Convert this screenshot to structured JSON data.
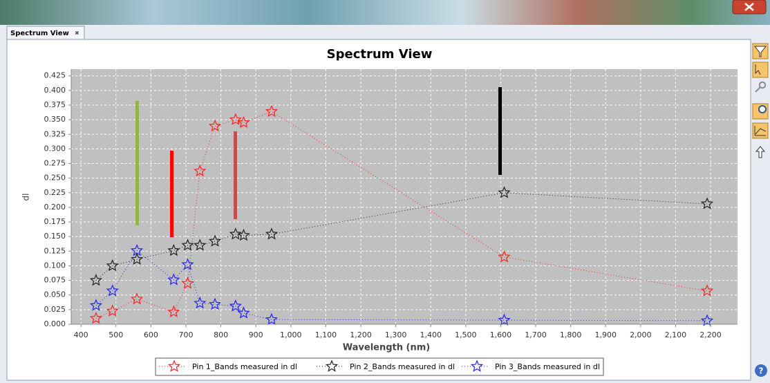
{
  "tab": {
    "title": "Spectrum View"
  },
  "chart_data": {
    "type": "line",
    "title": "Spectrum View",
    "x_label": "Wavelength (nm)",
    "y_label": "dl",
    "x": [
      443,
      490,
      560,
      665,
      705,
      740,
      783,
      842,
      865,
      945,
      1610,
      2190
    ],
    "series": [
      {
        "name": "Pin 1_Bands measured in dl",
        "color": "#ff2020",
        "values": [
          0.01,
          0.0225,
          0.043,
          0.021,
          0.07,
          0.262,
          0.339,
          0.35,
          0.345,
          0.364,
          0.115,
          0.057
        ]
      },
      {
        "name": "Pin 2_Bands measured in dl",
        "color": "#202020",
        "values": [
          0.075,
          0.1,
          0.111,
          0.126,
          0.135,
          0.135,
          0.142,
          0.154,
          0.152,
          0.154,
          0.225,
          0.206
        ]
      },
      {
        "name": "Pin 3_Bands measured in dl",
        "color": "#2020ff",
        "values": [
          0.032,
          0.057,
          0.126,
          0.076,
          0.102,
          0.036,
          0.034,
          0.031,
          0.019,
          0.008,
          0.007,
          0.006
        ]
      }
    ],
    "xlim": [
      372,
      2277
    ],
    "xticks": [
      400,
      500,
      600,
      700,
      800,
      900,
      {
        "value": 1000,
        "label": "1,000"
      },
      {
        "value": 1100,
        "label": "1,100"
      },
      {
        "value": 1200,
        "label": "1,200"
      },
      {
        "value": 1300,
        "label": "1,300"
      },
      {
        "value": 1400,
        "label": "1,400"
      },
      {
        "value": 1500,
        "label": "1,500"
      },
      {
        "value": 1600,
        "label": "1,600"
      },
      {
        "value": 1700,
        "label": "1,700"
      },
      {
        "value": 1800,
        "label": "1,800"
      },
      {
        "value": 1900,
        "label": "1,900"
      },
      {
        "value": 2000,
        "label": "2,000"
      },
      {
        "value": 2100,
        "label": "2,100"
      },
      {
        "value": 2200,
        "label": "2,200"
      }
    ],
    "ylim": [
      0,
      0.4365
    ],
    "yticks": [
      {
        "value": 0,
        "label": "0.000"
      },
      0.025,
      {
        "value": 0.05,
        "label": "0.050"
      },
      0.075,
      {
        "value": 0.1,
        "label": "0.100"
      },
      0.125,
      {
        "value": 0.15,
        "label": "0.150"
      },
      0.175,
      {
        "value": 0.2,
        "label": "0.200"
      },
      0.225,
      {
        "value": 0.25,
        "label": "0.250"
      },
      0.275,
      {
        "value": 0.3,
        "label": "0.300"
      },
      0.325,
      {
        "value": 0.35,
        "label": "0.350"
      },
      0.375,
      {
        "value": 0.4,
        "label": "0.400"
      },
      0.425
    ],
    "grid": true
  }
}
